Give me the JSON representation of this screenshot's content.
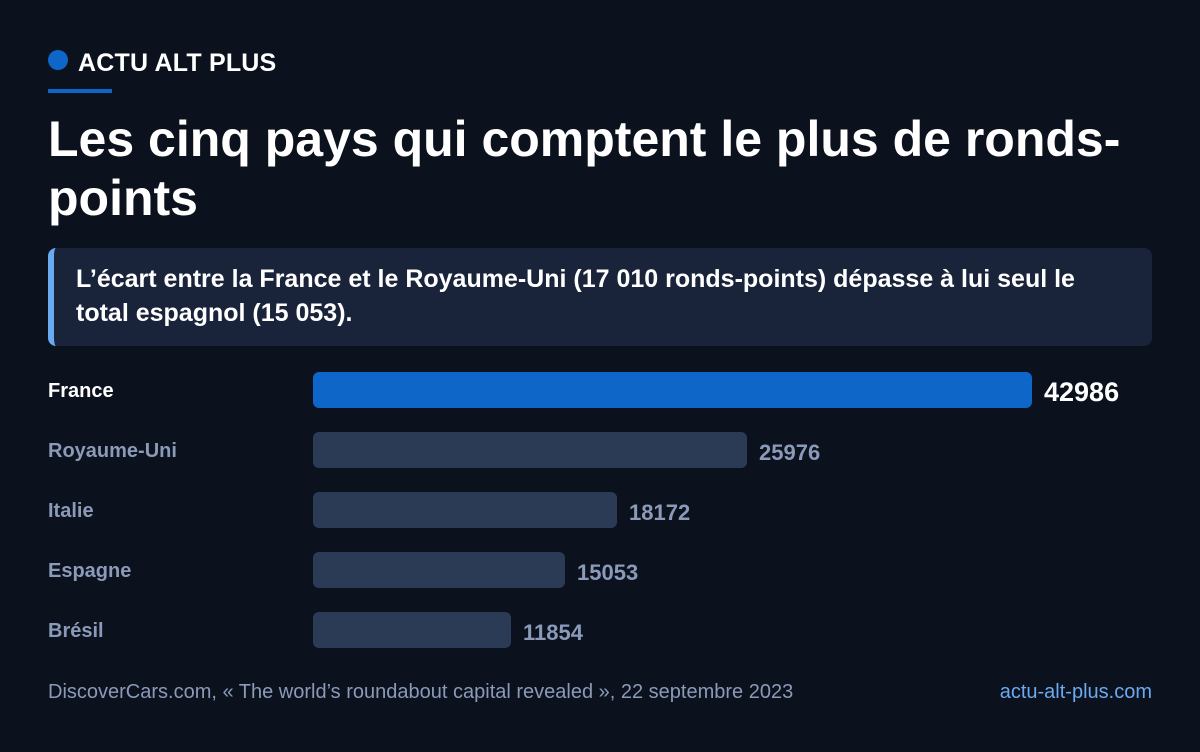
{
  "header": {
    "brand": "ACTU ALT PLUS",
    "title": "Les cinq pays qui comptent le plus de ronds-points",
    "callout": "L’écart entre la France et le Royaume-Uni (17 010 ronds-points) dépasse à lui seul le total espagnol (15 053)."
  },
  "colors": {
    "background": "#0b111d",
    "accent": "#0d66c8",
    "bar_default": "#2c3b55",
    "label_highlight": "#ffffff",
    "label_muted": "#8a9ab8",
    "link": "#6aaaf0"
  },
  "chart_data": {
    "type": "bar",
    "orientation": "horizontal",
    "categories": [
      "France",
      "Royaume-Uni",
      "Italie",
      "Espagne",
      "Brésil"
    ],
    "values": [
      42986,
      25976,
      18172,
      15053,
      11854
    ],
    "highlight": "France",
    "xlim": [
      0,
      42986
    ]
  },
  "footer": {
    "source": "DiscoverCars.com, « The world’s roundabout capital revealed », 22 septembre 2023",
    "site": "actu-alt-plus.com"
  }
}
